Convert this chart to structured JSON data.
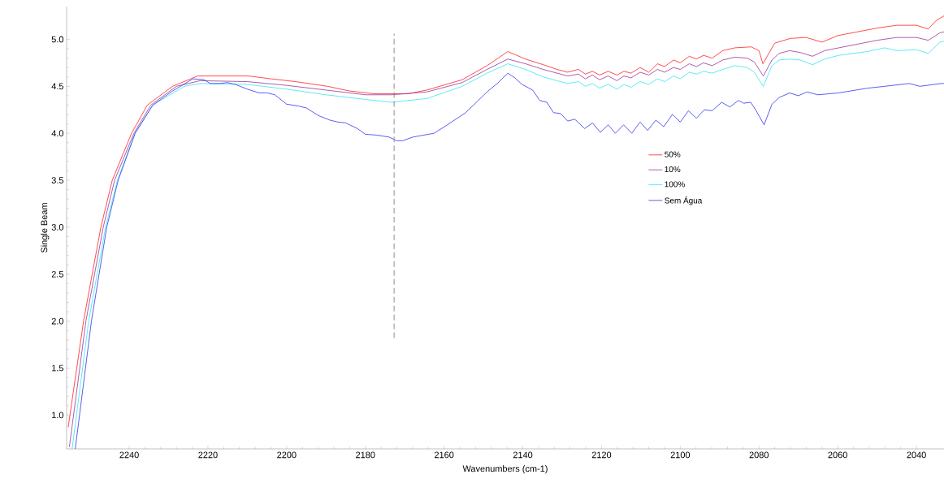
{
  "chart_data": {
    "type": "line",
    "xlabel": "Wavenumbers (cm-1)",
    "ylabel": "Single Beam",
    "xlim": [
      2255.9,
      2033
    ],
    "ylim": [
      0.64,
      5.35
    ],
    "xticks": [
      2240,
      2220,
      2200,
      2180,
      2160,
      2140,
      2120,
      2100,
      2080,
      2060,
      2040
    ],
    "yticks": [
      {
        "value": 1,
        "label": "1.0"
      },
      {
        "value": 1.5,
        "label": "1.5"
      },
      {
        "value": 2,
        "label": "2.0"
      },
      {
        "value": 2.5,
        "label": "2.5"
      },
      {
        "value": 3,
        "label": "3.0"
      },
      {
        "value": 3.5,
        "label": "3.5"
      },
      {
        "value": 4,
        "label": "4.0"
      },
      {
        "value": 4.5,
        "label": "4.5"
      },
      {
        "value": 5,
        "label": "5.0"
      }
    ],
    "legend": "right",
    "grid": false,
    "marker": "none",
    "line_style": "solid",
    "ref_lines": [
      {
        "axis": "x",
        "value": 2172.7,
        "color": "#808080",
        "line_style": "dashed"
      }
    ],
    "series": [
      {
        "name": "50%",
        "color": "#ff2020",
        "x": [
          2255.5,
          2251.6,
          2247.2,
          2244.3,
          2239.4,
          2235.4,
          2229,
          2222.6,
          2209.7,
          2204,
          2197.7,
          2189.6,
          2184,
          2177.6,
          2169.3,
          2164.4,
          2155.4,
          2149.1,
          2143.8,
          2139.3,
          2134.8,
          2131.3,
          2128.6,
          2125.9,
          2124.1,
          2122.3,
          2120.5,
          2118.3,
          2116.1,
          2114.3,
          2112.5,
          2110.2,
          2108,
          2105.8,
          2104,
          2101.7,
          2100,
          2097.7,
          2095.9,
          2094.1,
          2091.9,
          2089.2,
          2086.1,
          2082,
          2080,
          2079,
          2077.5,
          2076,
          2072,
          2068,
          2064,
          2060,
          2055,
          2050,
          2045,
          2040,
          2037,
          2035,
          2033
        ],
        "values": [
          0.87,
          2.0,
          3.0,
          3.5,
          4.0,
          4.3,
          4.5,
          4.61,
          4.61,
          4.58,
          4.55,
          4.5,
          4.45,
          4.42,
          4.42,
          4.46,
          4.57,
          4.72,
          4.87,
          4.79,
          4.73,
          4.68,
          4.65,
          4.68,
          4.63,
          4.66,
          4.62,
          4.66,
          4.62,
          4.66,
          4.64,
          4.7,
          4.65,
          4.74,
          4.71,
          4.78,
          4.75,
          4.82,
          4.79,
          4.83,
          4.8,
          4.88,
          4.91,
          4.92,
          4.88,
          4.74,
          4.85,
          4.96,
          5.01,
          5.02,
          4.97,
          5.04,
          5.08,
          5.12,
          5.15,
          5.15,
          5.11,
          5.2,
          5.25
        ]
      },
      {
        "name": "10%",
        "color": "#993399",
        "x": [
          2255.2,
          2251.0,
          2246.6,
          2243.7,
          2238.8,
          2234.5,
          2228,
          2222,
          2210,
          2200,
          2190,
          2180,
          2173.3,
          2164.4,
          2155.4,
          2149.1,
          2143.8,
          2139.3,
          2134.8,
          2131.3,
          2128.6,
          2125.9,
          2124.1,
          2122.3,
          2120.5,
          2118.3,
          2116.1,
          2114.3,
          2112.5,
          2110.2,
          2108,
          2105.8,
          2104,
          2101.7,
          2100,
          2097.7,
          2095.9,
          2094.1,
          2091.9,
          2089.2,
          2086.1,
          2083,
          2081.2,
          2078.9,
          2076.7,
          2074.9,
          2072.2,
          2069.5,
          2066.4,
          2063.3,
          2059.7,
          2050,
          2045,
          2040,
          2037,
          2034,
          2033
        ],
        "values": [
          0.66,
          2.0,
          3.0,
          3.5,
          4.0,
          4.3,
          4.5,
          4.56,
          4.55,
          4.51,
          4.46,
          4.41,
          4.41,
          4.44,
          4.54,
          4.68,
          4.79,
          4.74,
          4.68,
          4.64,
          4.61,
          4.63,
          4.58,
          4.62,
          4.57,
          4.61,
          4.56,
          4.61,
          4.59,
          4.65,
          4.62,
          4.68,
          4.65,
          4.7,
          4.68,
          4.74,
          4.71,
          4.75,
          4.72,
          4.78,
          4.81,
          4.8,
          4.76,
          4.61,
          4.78,
          4.85,
          4.88,
          4.86,
          4.82,
          4.88,
          4.91,
          4.99,
          5.02,
          5.02,
          4.99,
          5.07,
          5.08
        ]
      },
      {
        "name": "100%",
        "color": "#33e6f0",
        "x": [
          2254.5,
          2250.3,
          2246,
          2243,
          2238.5,
          2234,
          2226,
          2222,
          2210,
          2200,
          2190,
          2180,
          2173.3,
          2164.4,
          2155.4,
          2149.1,
          2143.8,
          2139.3,
          2134.8,
          2131.3,
          2128.6,
          2125.9,
          2124.1,
          2122.3,
          2120.5,
          2118.3,
          2116.1,
          2114.3,
          2112.5,
          2110.2,
          2108,
          2105.8,
          2104,
          2101.7,
          2100,
          2097.7,
          2095.9,
          2094.1,
          2091.9,
          2089.2,
          2086.1,
          2083,
          2081.2,
          2078.9,
          2076.7,
          2074.9,
          2072.2,
          2069.5,
          2066.4,
          2063.3,
          2059.7,
          2052.5,
          2048.1,
          2045,
          2040,
          2037,
          2034,
          2033
        ],
        "values": [
          0.64,
          2.0,
          3.0,
          3.5,
          4.0,
          4.3,
          4.5,
          4.53,
          4.52,
          4.47,
          4.41,
          4.36,
          4.33,
          4.37,
          4.5,
          4.64,
          4.74,
          4.68,
          4.6,
          4.56,
          4.53,
          4.55,
          4.5,
          4.53,
          4.48,
          4.52,
          4.47,
          4.52,
          4.49,
          4.55,
          4.52,
          4.58,
          4.55,
          4.61,
          4.58,
          4.65,
          4.63,
          4.66,
          4.64,
          4.68,
          4.72,
          4.7,
          4.65,
          4.5,
          4.72,
          4.78,
          4.79,
          4.78,
          4.73,
          4.79,
          4.83,
          4.87,
          4.91,
          4.88,
          4.89,
          4.85,
          4.97,
          4.98
        ]
      },
      {
        "name": "Sem Água",
        "color": "#3333ee",
        "x": [
          2253.7,
          2249.6,
          2245.7,
          2242.8,
          2238.5,
          2234,
          2229,
          2225,
          2223.8,
          2221,
          2219.4,
          2217,
          2215,
          2213,
          2210,
          2207,
          2205,
          2203,
          2200,
          2197,
          2195,
          2192,
          2189,
          2187,
          2185,
          2182,
          2180,
          2177,
          2174,
          2172,
          2170.6,
          2167.9,
          2162.6,
          2159.9,
          2154.5,
          2149.1,
          2146.5,
          2143.8,
          2142,
          2140.2,
          2137.5,
          2135.7,
          2133.9,
          2132.2,
          2130.4,
          2128.6,
          2126.8,
          2124.3,
          2122.3,
          2120.3,
          2118.3,
          2116.5,
          2114.4,
          2112.3,
          2110.2,
          2108.3,
          2106.2,
          2104.2,
          2102,
          2100,
          2097.9,
          2095.9,
          2093.9,
          2091.9,
          2089.5,
          2087.4,
          2085.2,
          2083.9,
          2082.1,
          2080.7,
          2078.7,
          2076.7,
          2074.9,
          2072.2,
          2070,
          2067.8,
          2065,
          2059.7,
          2052.5,
          2048.1,
          2041.8,
          2039.1,
          2033.8,
          2033
        ],
        "values": [
          0.64,
          2.0,
          3.0,
          3.5,
          4.0,
          4.3,
          4.45,
          4.55,
          4.58,
          4.57,
          4.53,
          4.53,
          4.54,
          4.52,
          4.47,
          4.43,
          4.43,
          4.41,
          4.31,
          4.29,
          4.27,
          4.19,
          4.14,
          4.12,
          4.11,
          4.05,
          3.99,
          3.98,
          3.96,
          3.92,
          3.92,
          3.96,
          4.0,
          4.07,
          4.22,
          4.44,
          4.53,
          4.64,
          4.59,
          4.52,
          4.46,
          4.35,
          4.33,
          4.22,
          4.21,
          4.13,
          4.15,
          4.05,
          4.11,
          4.01,
          4.09,
          4.0,
          4.09,
          4.0,
          4.12,
          4.03,
          4.14,
          4.07,
          4.2,
          4.12,
          4.24,
          4.16,
          4.25,
          4.24,
          4.33,
          4.28,
          4.35,
          4.32,
          4.33,
          4.24,
          4.09,
          4.31,
          4.38,
          4.43,
          4.4,
          4.44,
          4.41,
          4.43,
          4.48,
          4.5,
          4.53,
          4.5,
          4.53,
          4.53
        ]
      }
    ]
  }
}
